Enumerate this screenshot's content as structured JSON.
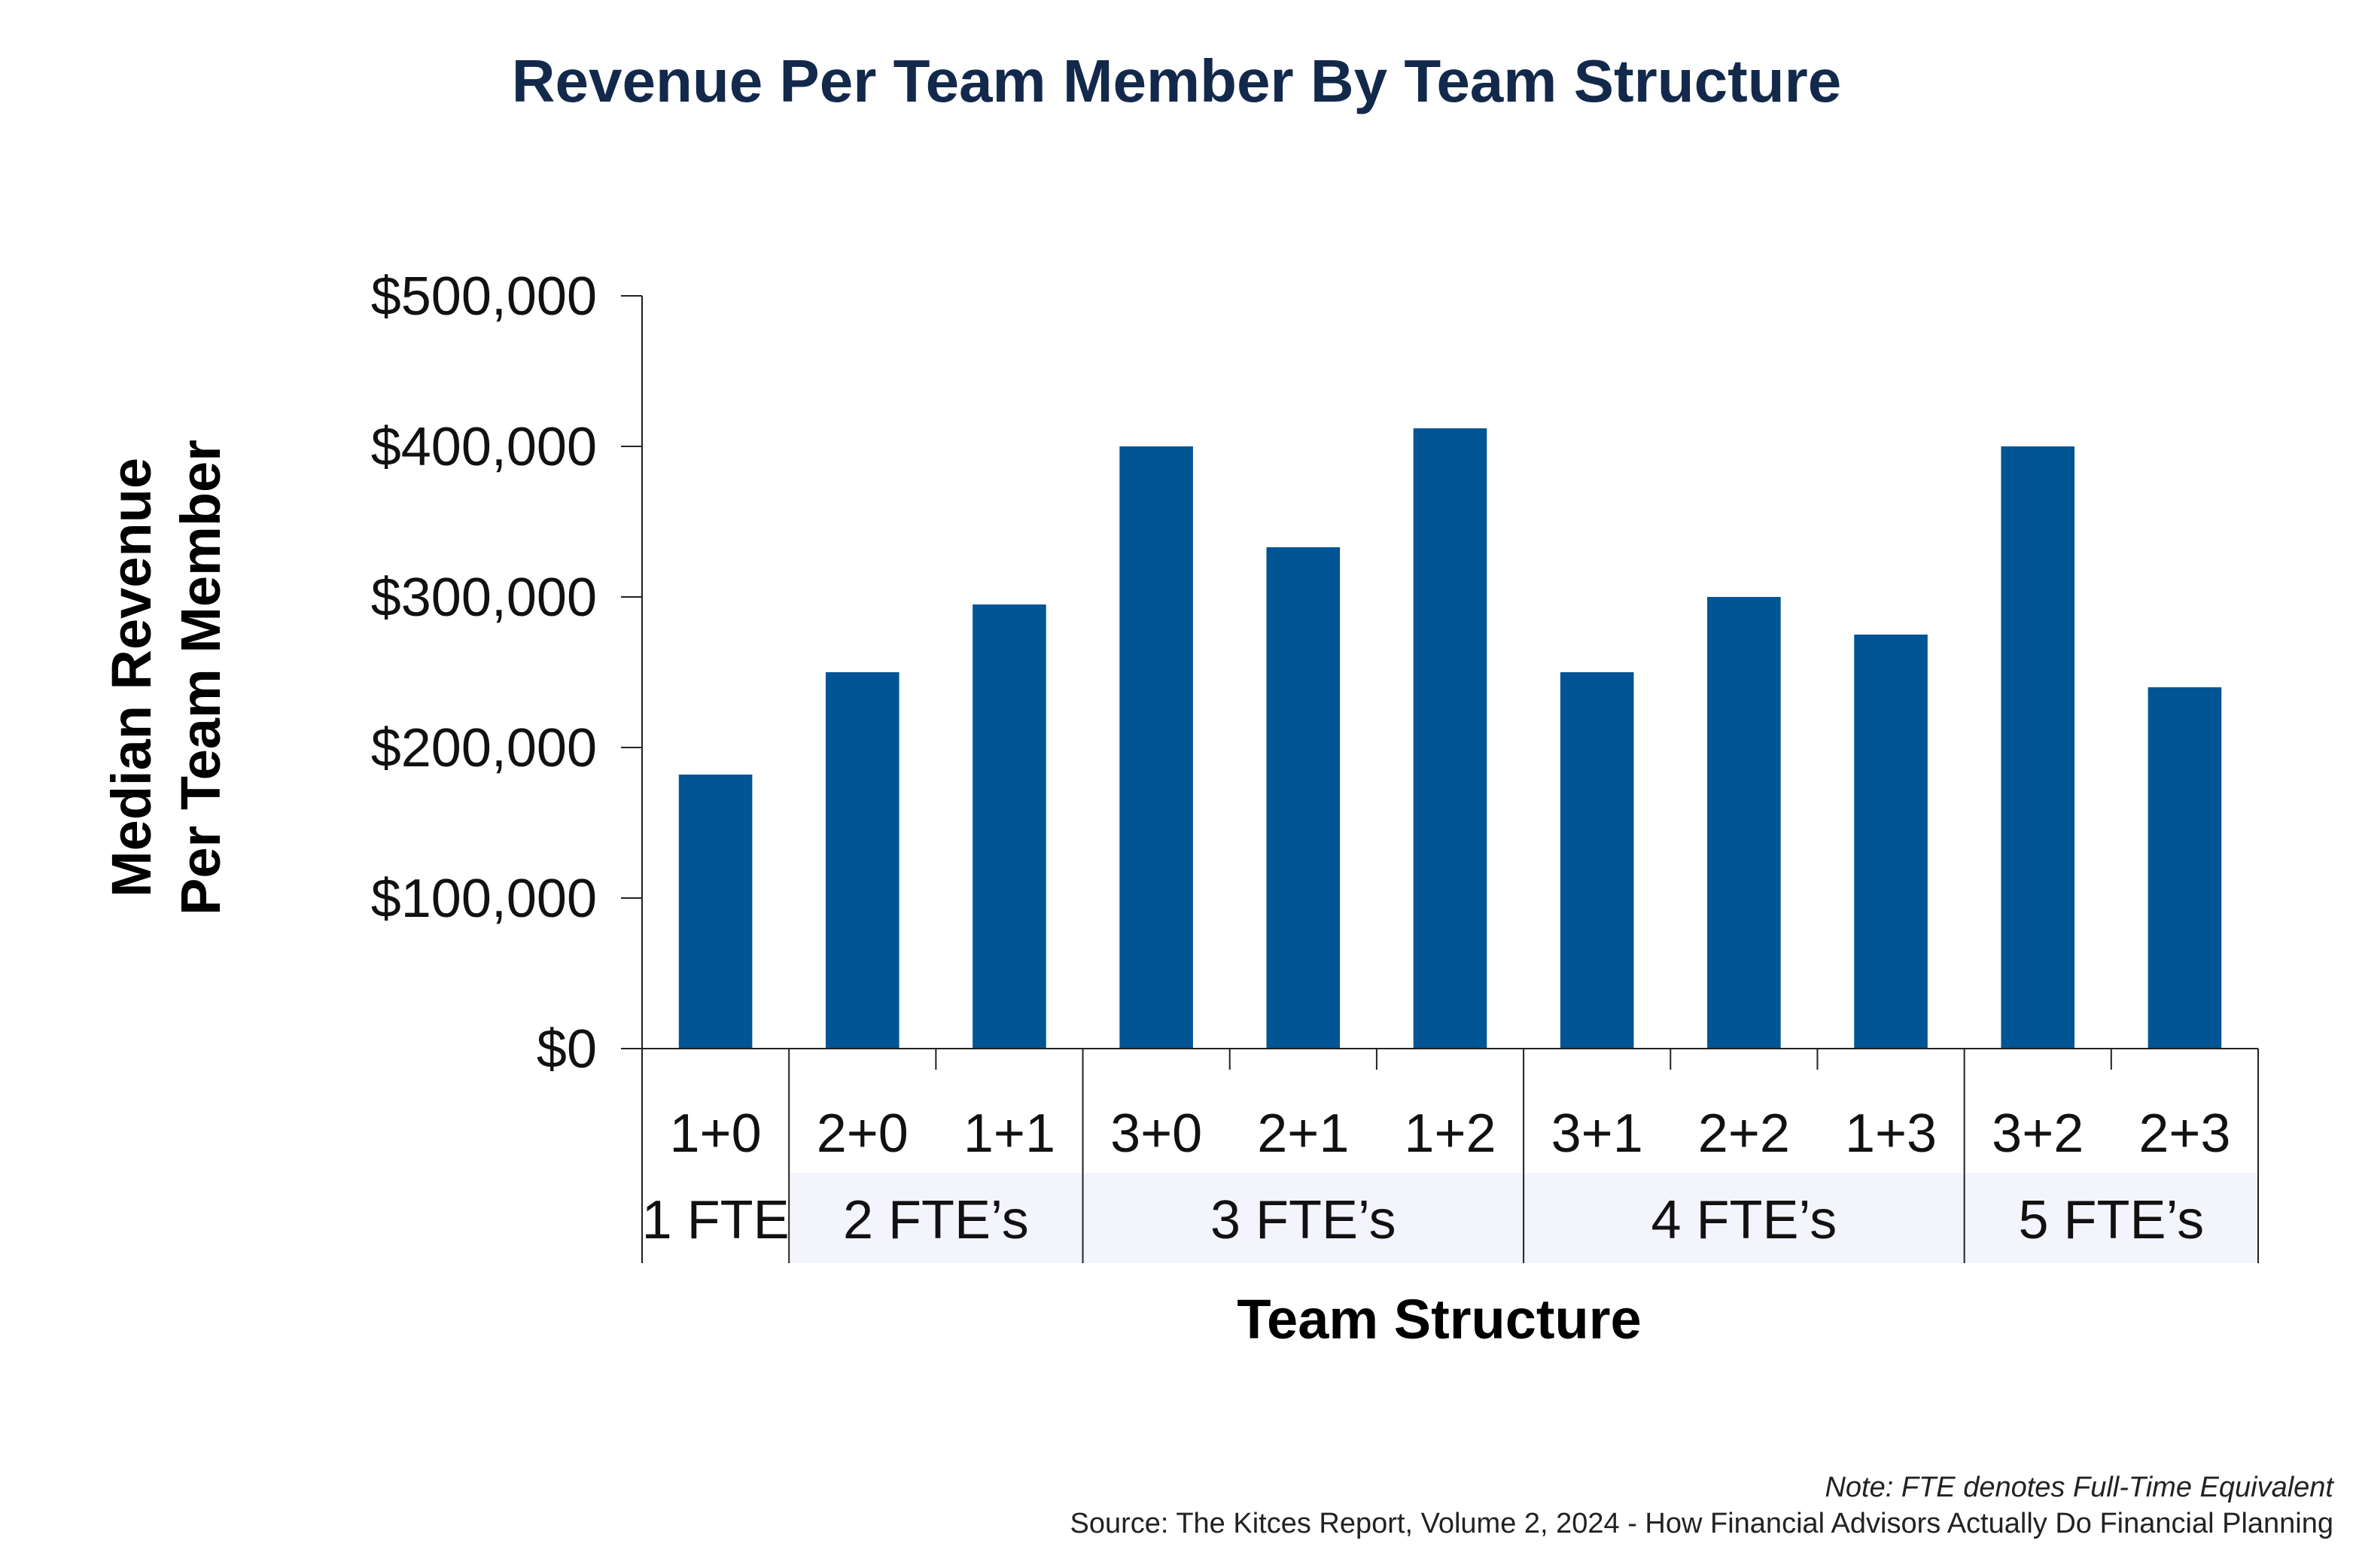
{
  "chart_data": {
    "type": "bar",
    "title": "Revenue Per Team Member By Team Structure",
    "ylabel_lines": [
      "Median Revenue",
      "Per Team Member"
    ],
    "xlabel": "Team Structure",
    "categories": [
      "1+0",
      "2+0",
      "1+1",
      "3+0",
      "2+1",
      "1+2",
      "3+1",
      "2+2",
      "1+3",
      "3+2",
      "2+3"
    ],
    "values": [
      182000,
      250000,
      295000,
      400000,
      333000,
      412000,
      250000,
      300000,
      275000,
      400000,
      240000
    ],
    "groups": [
      {
        "label": "1 FTE",
        "count": 1
      },
      {
        "label": "2 FTE’s",
        "count": 2
      },
      {
        "label": "3 FTE’s",
        "count": 3
      },
      {
        "label": "4 FTE’s",
        "count": 3
      },
      {
        "label": "5 FTE’s",
        "count": 2
      }
    ],
    "ylim": [
      0,
      500000
    ],
    "yticks": [
      0,
      100000,
      200000,
      300000,
      400000,
      500000
    ],
    "ytick_labels": [
      "$0",
      "$100,000",
      "$200,000",
      "$300,000",
      "$400,000",
      "$500,000"
    ],
    "grid": false,
    "bar_color": "#015594",
    "group_band_color": "#F3F4FC"
  },
  "footnote": {
    "note": "Note: FTE denotes Full-Time Equivalent",
    "source": "Source: The Kitces Report, Volume 2, 2024 - How Financial Advisors Actually Do Financial Planning"
  }
}
